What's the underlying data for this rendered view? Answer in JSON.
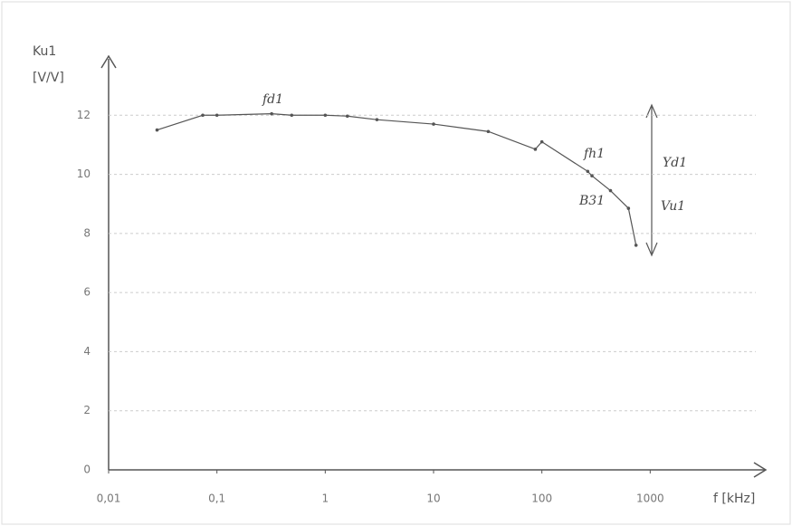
{
  "chart_data": {
    "type": "line",
    "y_label_1": "Ku1",
    "y_label_2": "[V/V]",
    "x_label": "f [kHz]",
    "x_scale": "log",
    "x": [
      0.028,
      0.074,
      0.1,
      0.32,
      0.49,
      1,
      1.6,
      3,
      10,
      32,
      87,
      100,
      265,
      290,
      430,
      630,
      740
    ],
    "series": [
      {
        "name": "Ku1",
        "color": "#555555",
        "values": [
          11.5,
          12.0,
          12.0,
          12.05,
          12.0,
          12.0,
          11.97,
          11.85,
          11.7,
          11.45,
          10.85,
          11.1,
          10.1,
          9.95,
          9.45,
          8.85,
          7.6
        ]
      }
    ],
    "xlim": [
      0.01,
      10000
    ],
    "ylim": [
      0,
      14
    ],
    "xticks": [
      {
        "value": 0.01,
        "label": "0,01"
      },
      {
        "value": 0.1,
        "label": "0,1"
      },
      1,
      10,
      100,
      1000
    ],
    "yticks": [
      0,
      2,
      4,
      6,
      8,
      10,
      12
    ],
    "grid": true,
    "annotations": [
      "fd1",
      "fh1",
      "B31",
      "Yd1",
      "Vu1"
    ]
  }
}
